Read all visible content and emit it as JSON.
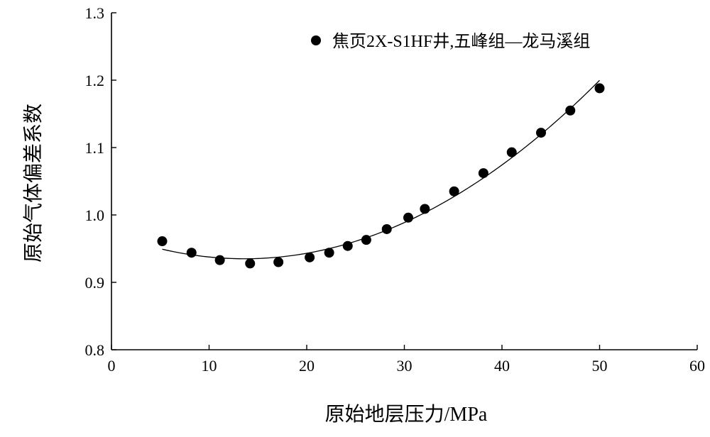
{
  "chart_data": {
    "type": "scatter",
    "title": "",
    "xlabel": "原始地层压力/MPa",
    "ylabel": "原始气体偏差系数",
    "xlim": [
      0,
      60
    ],
    "ylim": [
      0.8,
      1.3
    ],
    "xticks": [
      0,
      10,
      20,
      30,
      40,
      50,
      60
    ],
    "yticks": [
      0.8,
      0.9,
      1.0,
      1.1,
      1.2,
      1.3
    ],
    "xtick_labels": [
      "0",
      "10",
      "20",
      "30",
      "40",
      "50",
      "60"
    ],
    "ytick_labels": [
      "0.8",
      "0.9",
      "1.0",
      "1.1",
      "1.2",
      "1.3"
    ],
    "grid": false,
    "legend_position": "top-right",
    "series": [
      {
        "name": "焦页2X-S1HF井,五峰组—龙马溪组",
        "color": "#000000",
        "marker": "filled-circle",
        "x": [
          5.2,
          8.2,
          11.1,
          14.2,
          17.1,
          20.3,
          22.3,
          24.2,
          26.1,
          28.2,
          30.4,
          32.1,
          35.1,
          38.1,
          41.0,
          44.0,
          47.0,
          50.0
        ],
        "y": [
          0.961,
          0.944,
          0.933,
          0.928,
          0.93,
          0.937,
          0.944,
          0.954,
          0.963,
          0.979,
          0.996,
          1.009,
          1.035,
          1.062,
          1.093,
          1.122,
          1.155,
          1.188
        ]
      }
    ],
    "fit_curve": {
      "type": "polynomial",
      "color": "#000000",
      "x_range": [
        5.2,
        50.0
      ]
    }
  }
}
